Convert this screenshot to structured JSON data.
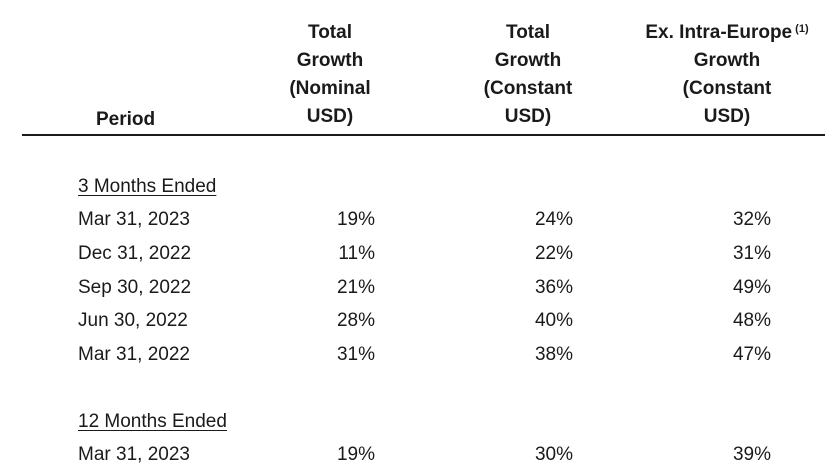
{
  "table": {
    "period_header": "Period",
    "columns": [
      {
        "lines": [
          "Total",
          "Growth",
          "(Nominal",
          "USD)"
        ]
      },
      {
        "lines": [
          "Total",
          "Growth",
          "(Constant",
          "USD)"
        ]
      },
      {
        "lines": [
          "Ex. Intra-Europe",
          "Growth",
          "(Constant",
          "USD)"
        ],
        "footnote": "(1)"
      }
    ],
    "sections": [
      {
        "title": "3 Months Ended",
        "rows": [
          {
            "period": "Mar 31, 2023",
            "values": [
              "19%",
              "24%",
              "32%"
            ]
          },
          {
            "period": "Dec 31, 2022",
            "values": [
              "11%",
              "22%",
              "31%"
            ]
          },
          {
            "period": "Sep 30, 2022",
            "values": [
              "21%",
              "36%",
              "49%"
            ]
          },
          {
            "period": "Jun 30, 2022",
            "values": [
              "28%",
              "40%",
              "48%"
            ]
          },
          {
            "period": "Mar 31, 2022",
            "values": [
              "31%",
              "38%",
              "47%"
            ]
          }
        ]
      },
      {
        "title": "12 Months Ended",
        "rows": [
          {
            "period": "Mar 31, 2023",
            "values": [
              "19%",
              "30%",
              "39%"
            ]
          }
        ]
      }
    ]
  }
}
